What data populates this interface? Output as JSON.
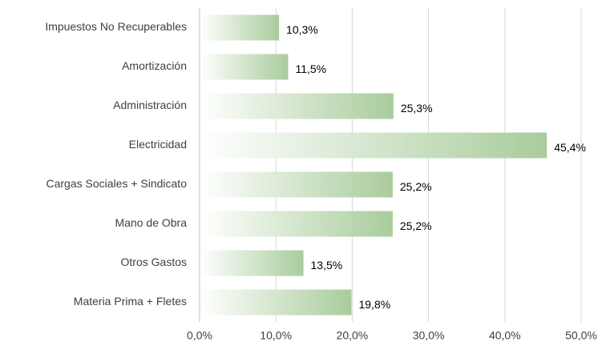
{
  "chart_data": {
    "type": "bar",
    "orientation": "horizontal",
    "categories": [
      "Impuestos No Recuperables",
      "Amortización",
      "Administración",
      "Electricidad",
      "Cargas Sociales + Sindicato",
      "Mano de Obra",
      "Otros Gastos",
      "Materia Prima + Fletes"
    ],
    "values": [
      10.3,
      11.5,
      25.3,
      45.4,
      25.2,
      25.2,
      13.5,
      19.8
    ],
    "value_labels": [
      "10,3%",
      "11,5%",
      "25,3%",
      "45,4%",
      "25,2%",
      "25,2%",
      "13,5%",
      "19,8%"
    ],
    "color": "#a9cc9c",
    "xlim": [
      0,
      50
    ],
    "xticks": [
      {
        "value": 0,
        "label": "0,0%"
      },
      {
        "value": 10,
        "label": "10,0%"
      },
      {
        "value": 20,
        "label": "20,0%"
      },
      {
        "value": 30,
        "label": "30,0%"
      },
      {
        "value": 40,
        "label": "40,0%"
      },
      {
        "value": 50,
        "label": "50,0%"
      }
    ],
    "grid": true
  }
}
